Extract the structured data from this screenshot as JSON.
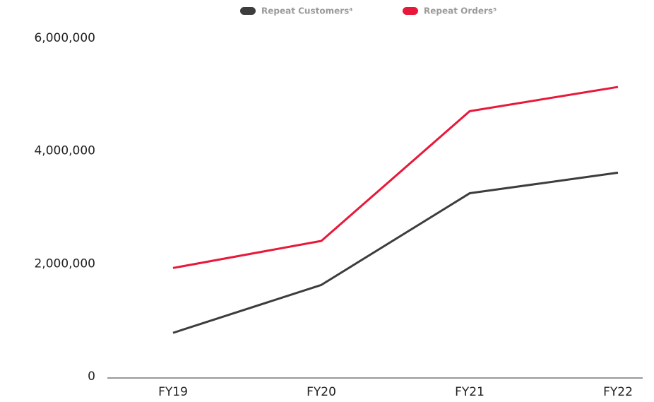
{
  "chart_data": {
    "type": "line",
    "categories": [
      "FY19",
      "FY20",
      "FY21",
      "FY22"
    ],
    "series": [
      {
        "name": "Repeat Customers⁴",
        "color": "#3d3d3d",
        "values": [
          800000,
          1650000,
          3275000,
          3640000
        ]
      },
      {
        "name": "Repeat Orders⁵",
        "color": "#e8183a",
        "values": [
          1950000,
          2430000,
          4730000,
          5160000
        ]
      }
    ],
    "ylim": [
      0,
      6000000
    ],
    "yticks": [
      {
        "value": 0,
        "label": "0"
      },
      {
        "value": 2000000,
        "label": "2,000,000"
      },
      {
        "value": 4000000,
        "label": "4,000,000"
      },
      {
        "value": 6000000,
        "label": "6,000,000"
      }
    ],
    "legend": "top"
  }
}
